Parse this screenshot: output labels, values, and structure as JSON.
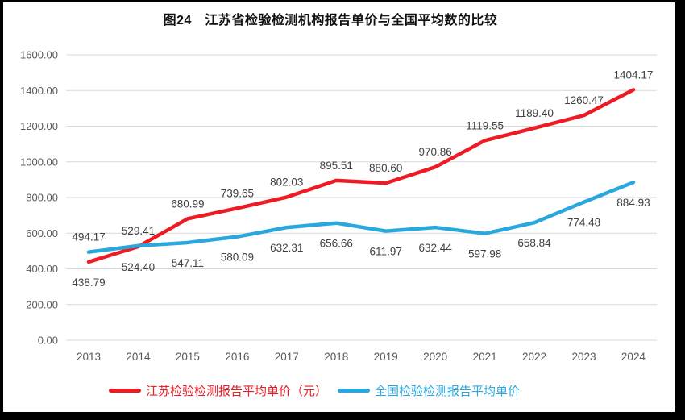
{
  "title": "图24　江苏省检验检测机构报告单价与全国平均数的比较",
  "chart_data": {
    "type": "line",
    "x": [
      2013,
      2014,
      2015,
      2016,
      2017,
      2018,
      2019,
      2020,
      2021,
      2022,
      2023,
      2024
    ],
    "series": [
      {
        "name": "江苏检验检测报告平均单价（元）",
        "color": "#ed1b23",
        "values": [
          438.79,
          524.4,
          680.99,
          739.65,
          802.03,
          895.51,
          880.6,
          970.86,
          1119.55,
          1189.4,
          1260.47,
          1404.17
        ],
        "label_position": [
          "below",
          "below",
          "above",
          "above",
          "above",
          "above",
          "above",
          "above",
          "above",
          "above",
          "above",
          "above"
        ]
      },
      {
        "name": "全国检验检测报告平均单价",
        "color": "#29a8df",
        "values": [
          494.17,
          529.41,
          547.11,
          580.09,
          632.31,
          656.66,
          611.97,
          632.44,
          597.98,
          658.84,
          774.48,
          884.93
        ],
        "label_position": [
          "above",
          "above",
          "below",
          "below",
          "below",
          "below",
          "below",
          "below",
          "below",
          "below",
          "below",
          "below"
        ]
      }
    ],
    "ylim": [
      0,
      1600
    ],
    "ytick_step": 200,
    "ytick_labels": [
      "0.00",
      "200.00",
      "400.00",
      "600.00",
      "800.00",
      "1000.00",
      "1200.00",
      "1400.00",
      "1600.00"
    ],
    "xtick_labels": [
      "2013",
      "2014",
      "2015",
      "2016",
      "2017",
      "2018",
      "2019",
      "2020",
      "2021",
      "2022",
      "2023",
      "2024"
    ],
    "grid": true,
    "legend_position": "bottom",
    "gridline_color": "#d9d9d9",
    "axis_label_color": "#595959",
    "data_label_color": "#404040",
    "frame_color": "#000000",
    "background_color": "#ffffff"
  }
}
